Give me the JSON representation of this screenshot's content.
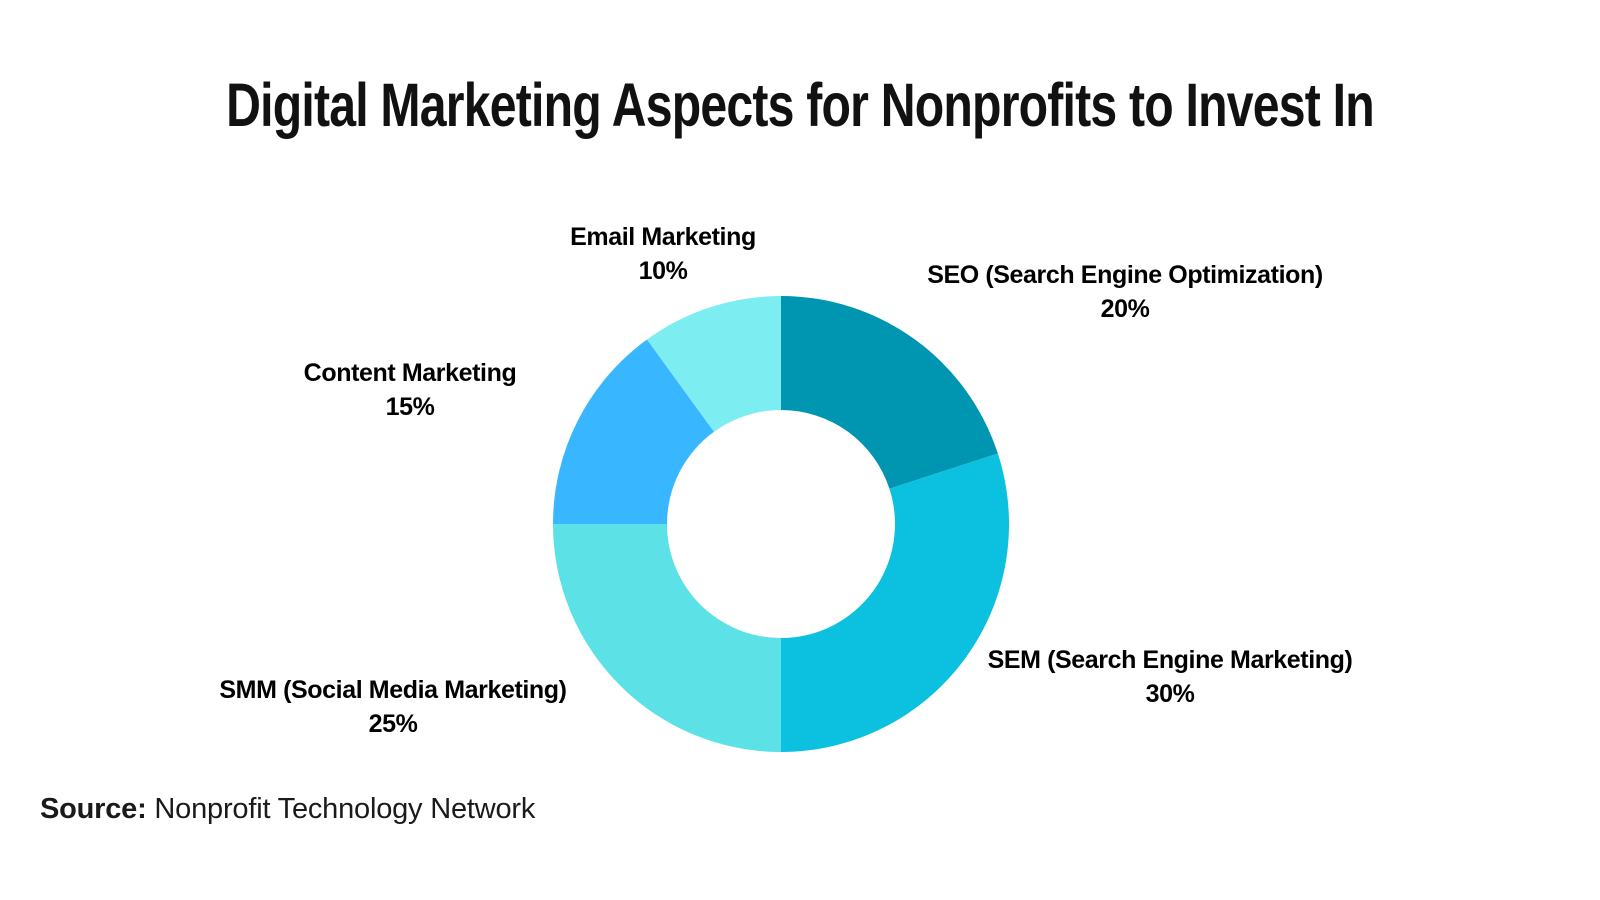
{
  "title": "Digital Marketing Aspects for Nonprofits to Invest In",
  "source": {
    "label": "Source:",
    "text": " Nonprofit Technology Network"
  },
  "labels": [
    {
      "name": "SEO (Search Engine Optimization)",
      "value": "20%"
    },
    {
      "name": "SEM (Search Engine Marketing)",
      "value": "30%"
    },
    {
      "name": "SMM (Social Media Marketing)",
      "value": "25%"
    },
    {
      "name": "Content Marketing",
      "value": "15%"
    },
    {
      "name": "Email Marketing",
      "value": "10%"
    }
  ],
  "chart_data": {
    "type": "pie",
    "subtype": "donut",
    "title": "Digital Marketing Aspects for Nonprofits to Invest In",
    "categories": [
      "SEO (Search Engine Optimization)",
      "SEM (Search Engine Marketing)",
      "SMM (Social Media Marketing)",
      "Content Marketing",
      "Email Marketing"
    ],
    "values": [
      20,
      30,
      25,
      15,
      10
    ],
    "unit": "%",
    "colors": [
      "#0095B1",
      "#0CC0DF",
      "#5CE1E6",
      "#38B6FF",
      "#7CEDF1"
    ],
    "start_angle_deg": 0,
    "direction": "clockwise",
    "inner_radius_ratio": 0.5,
    "legend_position": "none",
    "labels_outside": true,
    "source": "Nonprofit Technology Network"
  }
}
